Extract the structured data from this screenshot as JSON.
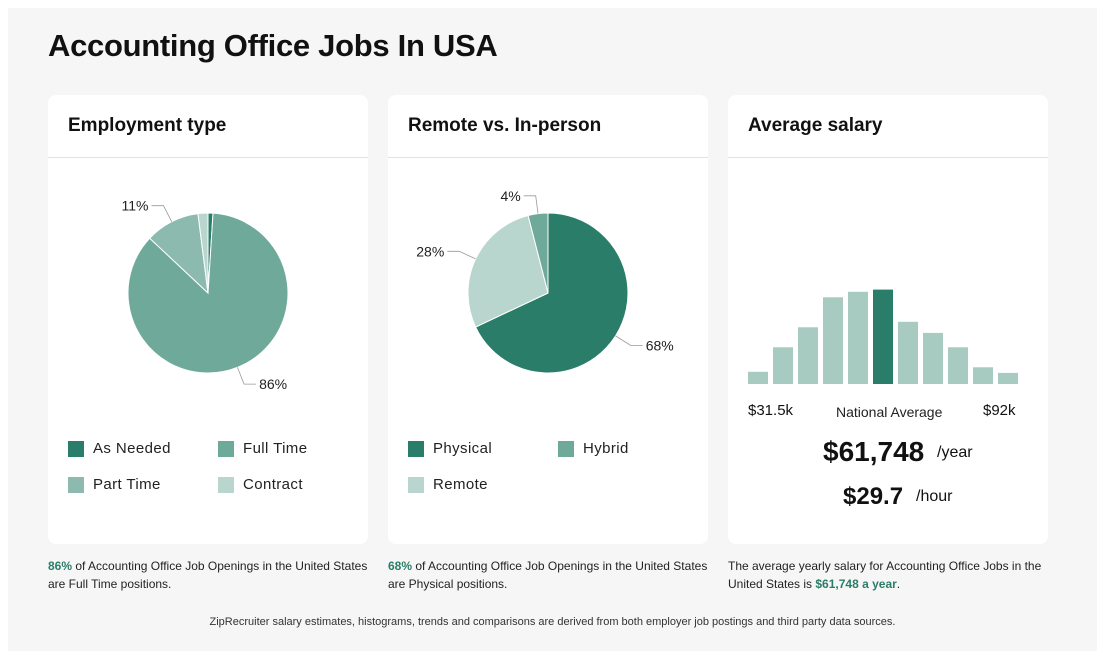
{
  "page": {
    "title": "Accounting Office Jobs In USA"
  },
  "colors": {
    "dark": "#2a7d68",
    "mid": "#6fa99a",
    "light": "#8cbaae",
    "pale": "#b9d6ce",
    "bar": "#a8cbc1"
  },
  "cards": {
    "employment": {
      "title": "Employment type"
    },
    "remote": {
      "title": "Remote vs. In-person"
    },
    "salary": {
      "title": "Average salary"
    }
  },
  "legends": {
    "employment": [
      "As Needed",
      "Full Time",
      "Part Time",
      "Contract"
    ],
    "remote": [
      "Physical",
      "Hybrid",
      "Remote"
    ]
  },
  "chart_data": [
    {
      "type": "pie",
      "title": "Employment type",
      "slices": [
        {
          "label": "As Needed",
          "value": 1,
          "color": "#2a7d68",
          "show": ""
        },
        {
          "label": "Full Time",
          "value": 86,
          "color": "#6fa99a",
          "show": "86%"
        },
        {
          "label": "Part Time",
          "value": 11,
          "color": "#8cbaae",
          "show": "11%"
        },
        {
          "label": "Contract",
          "value": 2,
          "color": "#b9d6ce",
          "show": ""
        }
      ]
    },
    {
      "type": "pie",
      "title": "Remote vs. In-person",
      "slices": [
        {
          "label": "Physical",
          "value": 68,
          "color": "#2a7d68",
          "show": "68%"
        },
        {
          "label": "Remote",
          "value": 28,
          "color": "#b9d6ce",
          "show": "28%"
        },
        {
          "label": "Hybrid",
          "value": 4,
          "color": "#6fa99a",
          "show": "4%"
        }
      ]
    },
    {
      "type": "bar",
      "title": "Average salary",
      "values": [
        11,
        33,
        51,
        78,
        83,
        85,
        56,
        46,
        33,
        15,
        10
      ],
      "highlight_index": 5,
      "ylim": [
        0,
        90
      ],
      "min_label": "$31.5k",
      "max_label": "$92k",
      "center_label": "National Average"
    }
  ],
  "salary": {
    "year_value": "$61,748",
    "year_unit": "/year",
    "hour_value": "$29.7",
    "hour_unit": "/hour"
  },
  "captions": {
    "employment": {
      "hl": "86%",
      "text": " of Accounting Office Job Openings in the United States are Full Time positions."
    },
    "remote": {
      "hl": "68%",
      "text": " of Accounting Office Job Openings in the United States are Physical positions."
    },
    "salary": {
      "pre": "The average yearly salary for Accounting Office Jobs in the United States is ",
      "hl": "$61,748 a year",
      "post": "."
    }
  },
  "footer": "ZipRecruiter salary estimates, histograms, trends and comparisons are derived from both employer job postings and third party data sources."
}
